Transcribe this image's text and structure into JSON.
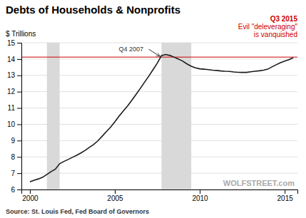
{
  "chart_data": {
    "type": "line",
    "title": "Debts of Households & Nonprofits",
    "ylabel": "$ Trillions",
    "source": "Source: St. Louis Fed, Fed Board of Governors",
    "annotations": [
      {
        "text": "Q4 2007",
        "color": "#333333"
      },
      {
        "text": "Q3 2015",
        "color": "#cc0000"
      },
      {
        "text": "Evil \"deleveraging\"",
        "color": "#cc0000"
      },
      {
        "text": "is vanquished",
        "color": "#cc0000"
      },
      {
        "text": "WOLFSTREET.com",
        "color": "#aaaaaa"
      }
    ],
    "xlim": [
      1999.5,
      2015.75
    ],
    "xticks": [
      2000,
      2005,
      2010,
      2015
    ],
    "ylim": [
      6,
      15
    ],
    "yticks": [
      6,
      7,
      8,
      9,
      10,
      11,
      12,
      13,
      14,
      15
    ],
    "grid": true,
    "bands": {
      "values": [
        [
          2001.0,
          2001.75
        ],
        [
          2007.75,
          2009.5
        ]
      ],
      "color": "#d9d9d9"
    },
    "ref_line": {
      "value": 14.12,
      "color": "#cc0000"
    },
    "color": "#1a1a1a",
    "x": [
      2000.0,
      2000.25,
      2000.5,
      2000.75,
      2001.0,
      2001.25,
      2001.5,
      2001.75,
      2002.0,
      2002.25,
      2002.5,
      2002.75,
      2003.0,
      2003.25,
      2003.5,
      2003.75,
      2004.0,
      2004.25,
      2004.5,
      2004.75,
      2005.0,
      2005.25,
      2005.5,
      2005.75,
      2006.0,
      2006.25,
      2006.5,
      2006.75,
      2007.0,
      2007.25,
      2007.5,
      2007.75,
      2008.0,
      2008.25,
      2008.5,
      2008.75,
      2009.0,
      2009.25,
      2009.5,
      2009.75,
      2010.0,
      2010.25,
      2010.5,
      2010.75,
      2011.0,
      2011.25,
      2011.5,
      2011.75,
      2012.0,
      2012.25,
      2012.5,
      2012.75,
      2013.0,
      2013.25,
      2013.5,
      2013.75,
      2014.0,
      2014.25,
      2014.5,
      2014.75,
      2015.0,
      2015.25,
      2015.5
    ],
    "values": [
      6.47,
      6.57,
      6.65,
      6.75,
      6.92,
      7.1,
      7.25,
      7.58,
      7.72,
      7.84,
      7.97,
      8.1,
      8.24,
      8.4,
      8.58,
      8.76,
      8.98,
      9.26,
      9.55,
      9.82,
      10.15,
      10.5,
      10.82,
      11.12,
      11.47,
      11.83,
      12.2,
      12.58,
      12.95,
      13.35,
      13.75,
      14.22,
      14.28,
      14.22,
      14.11,
      14.0,
      13.87,
      13.7,
      13.56,
      13.46,
      13.4,
      13.38,
      13.35,
      13.32,
      13.3,
      13.27,
      13.25,
      13.24,
      13.21,
      13.19,
      13.18,
      13.18,
      13.22,
      13.25,
      13.28,
      13.32,
      13.38,
      13.52,
      13.65,
      13.78,
      13.88,
      13.96,
      14.08
    ]
  }
}
